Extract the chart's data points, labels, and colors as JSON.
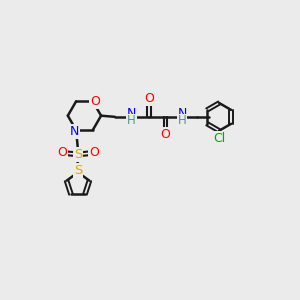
{
  "bg_color": "#ebebeb",
  "bond_color": "#1a1a1a",
  "atom_colors": {
    "O": "#ff0000",
    "N": "#0000ee",
    "S": "#ddaa00",
    "Cl": "#00aa00",
    "H": "#5a9090",
    "C": "#1a1a1a"
  },
  "figsize": [
    3.0,
    3.0
  ],
  "dpi": 100
}
